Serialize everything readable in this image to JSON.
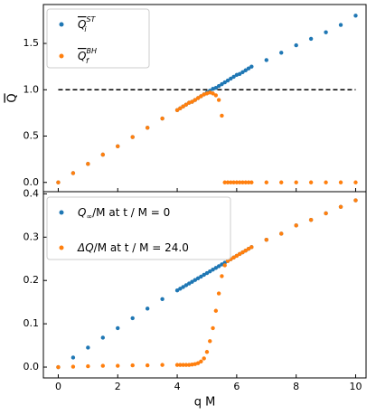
{
  "chart_data": [
    {
      "type": "scatter",
      "ylabel": "Q",
      "ylabel_overline": true,
      "x": [
        0,
        0.5,
        1,
        1.5,
        2,
        2.5,
        3,
        3.5,
        4,
        4.1,
        4.2,
        4.3,
        4.4,
        4.5,
        4.6,
        4.7,
        4.8,
        4.9,
        5,
        5.1,
        5.2,
        5.3,
        5.4,
        5.5,
        5.6,
        5.7,
        5.8,
        5.9,
        6,
        6.1,
        6.2,
        6.3,
        6.4,
        6.5,
        7,
        7.5,
        8,
        8.5,
        9,
        9.5,
        10
      ],
      "series": [
        {
          "name": "Q",
          "sub": "i",
          "sup": "ST",
          "overline": true,
          "color": "#1f77b4",
          "values": [
            0,
            0.1,
            0.2,
            0.3,
            0.39,
            0.49,
            0.59,
            0.69,
            0.78,
            0.8,
            0.82,
            0.84,
            0.86,
            0.87,
            0.89,
            0.91,
            0.93,
            0.95,
            0.97,
            0.99,
            1.01,
            1.02,
            1.04,
            1.06,
            1.08,
            1.1,
            1.12,
            1.14,
            1.16,
            1.17,
            1.19,
            1.21,
            1.23,
            1.25,
            1.32,
            1.4,
            1.48,
            1.55,
            1.62,
            1.7,
            1.8
          ]
        },
        {
          "name": "Q",
          "sub": "f",
          "sup": "BH",
          "overline": true,
          "color": "#ff7f0e",
          "values": [
            0,
            0.1,
            0.2,
            0.3,
            0.39,
            0.49,
            0.59,
            0.69,
            0.78,
            0.8,
            0.82,
            0.84,
            0.86,
            0.87,
            0.89,
            0.91,
            0.93,
            0.95,
            0.96,
            0.97,
            0.96,
            0.94,
            0.89,
            0.72,
            0,
            0,
            0,
            0,
            0,
            0,
            0,
            0,
            0,
            0,
            0,
            0,
            0,
            0,
            0,
            0,
            0
          ]
        }
      ],
      "hline": {
        "value": 1,
        "xmin": 0,
        "xmax": 10,
        "color": "#000000",
        "style": "dashed"
      },
      "xlim": [
        -0.5,
        10.35
      ],
      "ylim": [
        -0.1,
        1.92
      ],
      "xticks": [
        0,
        2,
        4,
        6,
        8,
        10
      ],
      "show_xtick_labels": false,
      "yticks": [
        {
          "value": 0,
          "label": "0.0"
        },
        {
          "value": 0.5,
          "label": "0.5"
        },
        {
          "value": 1,
          "label": "1.0"
        },
        {
          "value": 1.5,
          "label": "1.5"
        }
      ],
      "legend": "upper left"
    },
    {
      "type": "scatter",
      "xlabel": "q M",
      "x": [
        0,
        0.5,
        1,
        1.5,
        2,
        2.5,
        3,
        3.5,
        4,
        4.1,
        4.2,
        4.3,
        4.4,
        4.5,
        4.6,
        4.7,
        4.8,
        4.9,
        5,
        5.1,
        5.2,
        5.3,
        5.4,
        5.5,
        5.6,
        5.7,
        5.8,
        5.9,
        6,
        6.1,
        6.2,
        6.3,
        6.4,
        6.5,
        7,
        7.5,
        8,
        8.5,
        9,
        9.5,
        10
      ],
      "series": [
        {
          "name": "Q",
          "sub": "∞",
          "rest": "/M at  t / M = 0",
          "color": "#1f77b4",
          "values": [
            0,
            0.022,
            0.045,
            0.068,
            0.09,
            0.113,
            0.135,
            0.157,
            0.177,
            0.181,
            0.185,
            0.189,
            0.193,
            0.197,
            0.201,
            0.205,
            0.209,
            0.213,
            0.217,
            0.221,
            0.225,
            0.229,
            0.233,
            0.237,
            0.241,
            0.245,
            0.249,
            0.253,
            0.257,
            0.261,
            0.265,
            0.269,
            0.273,
            0.277,
            0.294,
            0.308,
            0.327,
            0.34,
            0.355,
            0.37,
            0.385
          ]
        },
        {
          "name": "ΔQ",
          "rest": "/M at  t / M = 24.0",
          "color": "#ff7f0e",
          "values": [
            0,
            0.001,
            0.002,
            0.003,
            0.003,
            0.004,
            0.004,
            0.005,
            0.005,
            0.005,
            0.005,
            0.005,
            0.005,
            0.006,
            0.007,
            0.009,
            0.013,
            0.02,
            0.035,
            0.06,
            0.09,
            0.13,
            0.17,
            0.21,
            0.235,
            0.245,
            0.249,
            0.253,
            0.257,
            0.261,
            0.265,
            0.269,
            0.273,
            0.277,
            0.294,
            0.308,
            0.327,
            0.34,
            0.355,
            0.37,
            0.385
          ]
        }
      ],
      "xlim": [
        -0.5,
        10.35
      ],
      "ylim": [
        -0.025,
        0.405
      ],
      "xticks": [
        0,
        2,
        4,
        6,
        8,
        10
      ],
      "show_xtick_labels": true,
      "yticks": [
        {
          "value": 0,
          "label": "0.0"
        },
        {
          "value": 0.1,
          "label": "0.1"
        },
        {
          "value": 0.2,
          "label": "0.2"
        },
        {
          "value": 0.3,
          "label": "0.3"
        },
        {
          "value": 0.4,
          "label": "0.4"
        }
      ],
      "legend": "upper left"
    }
  ]
}
